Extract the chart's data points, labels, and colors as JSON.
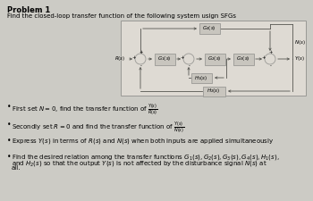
{
  "title": "Problem 1",
  "subtitle": "Find the closed-loop transfer function of the following system usign SFGs",
  "bg_color": "#cccbc5",
  "diagram_bg": "#dedad3",
  "box_facecolor": "#c8c5be",
  "box_edgecolor": "#999995",
  "line_color": "#555550",
  "bullet1": "First set $N=0$, find the transfer function of $\\frac{Y(s)}{R(s)}$",
  "bullet2": "Secondly set $R=0$ and find the transfer function of $\\frac{Y(s)}{N(s)}$",
  "bullet3": "Express $Y(s)$ in terms of $R(s)$ and $N(s)$ when both inputs are applied simultaneously",
  "bullet4a": "Find the desired relation among the transfer functions $G_1(s), G_2(s), G_3(s), G_4(s), H_1(s)$,",
  "bullet4b": "and $H_2(s)$ so that the output $Y(s)$ is not affected by the disturbance signal $N(s)$ at",
  "bullet4c": "all."
}
